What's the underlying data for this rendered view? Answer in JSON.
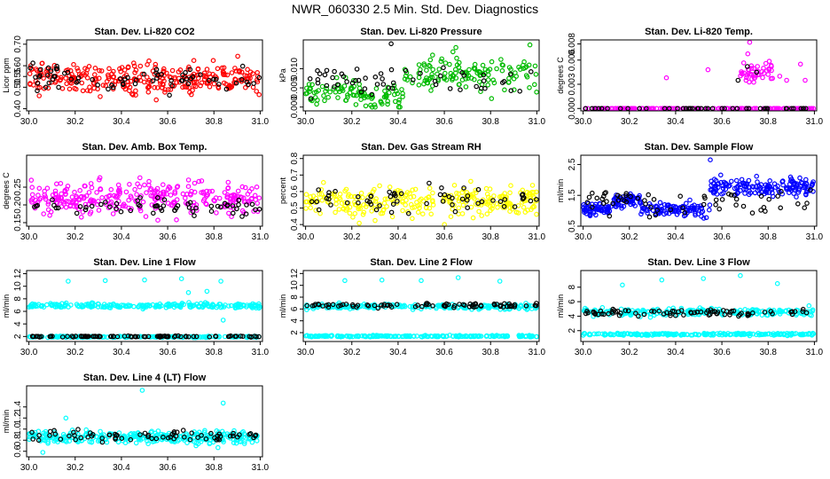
{
  "figure": {
    "title": "NWR_060330  2.5 Min. Std. Dev. Diagnostics",
    "background": "#ffffff",
    "overlay_color": "#000000"
  },
  "chart_data": [
    {
      "type": "scatter",
      "title": "Stan. Dev. Li-820 CO2",
      "xlabel": "",
      "ylabel": "Licor ppm",
      "color": "#ff0000",
      "xlim": [
        29.99,
        31.01
      ],
      "ylim": [
        0.39,
        0.72
      ],
      "xticks": [
        "30.0",
        "30.2",
        "30.4",
        "30.6",
        "30.8",
        "31.0"
      ],
      "yticks": [
        "0.40",
        "0.50",
        "0.55",
        "0.60",
        "0.70"
      ],
      "bands": [
        {
          "name": "main",
          "x_range": [
            30.0,
            31.0
          ],
          "mean": 0.54,
          "spread": 0.05,
          "min": 0.4,
          "max": 0.71,
          "count": 300,
          "colored": true
        },
        {
          "name": "overlay",
          "x_range": [
            30.0,
            31.0
          ],
          "mean": 0.535,
          "spread": 0.045,
          "min": 0.41,
          "max": 0.66,
          "count": 70,
          "colored": false
        }
      ],
      "outliers": []
    },
    {
      "type": "scatter",
      "title": "Stan. Dev. Li-820 Pressure",
      "xlabel": "",
      "ylabel": "kPa",
      "color": "#00bb00",
      "xlim": [
        29.99,
        31.01
      ],
      "ylim": [
        -0.001,
        0.0175
      ],
      "xticks": [
        "30.0",
        "30.2",
        "30.4",
        "30.6",
        "30.8",
        "31.0"
      ],
      "yticks": [
        "0.000",
        "0.005",
        "0.010"
      ],
      "bands": [
        {
          "name": "early",
          "x_range": [
            30.0,
            30.25
          ],
          "mean": 0.004,
          "spread": 0.0022,
          "min": 0.0,
          "max": 0.011,
          "count": 60,
          "colored": true
        },
        {
          "name": "dip",
          "x_range": [
            30.25,
            30.42
          ],
          "mean": 0.002,
          "spread": 0.0022,
          "min": 0.0,
          "max": 0.008,
          "count": 40,
          "colored": true
        },
        {
          "name": "rising",
          "x_range": [
            30.42,
            31.0
          ],
          "mean": 0.0085,
          "spread": 0.003,
          "min": 0.002,
          "max": 0.0165,
          "count": 130,
          "colored": true
        },
        {
          "name": "overlay",
          "x_range": [
            30.0,
            31.0
          ],
          "mean": 0.0065,
          "spread": 0.003,
          "min": 0.001,
          "max": 0.014,
          "count": 55,
          "colored": false
        }
      ],
      "outliers": [
        {
          "x": 30.37,
          "y": 0.0165,
          "colored": false
        },
        {
          "x": 30.97,
          "y": 0.0162,
          "colored": true
        },
        {
          "x": 30.65,
          "y": 0.0155,
          "colored": true
        }
      ]
    },
    {
      "type": "scatter",
      "title": "Stan. Dev. Li-820 Temp.",
      "xlabel": "",
      "ylabel": "degrees C",
      "color": "#ff00ff",
      "xlim": [
        29.99,
        31.01
      ],
      "ylim": [
        -0.0003,
        0.0085
      ],
      "xticks": [
        "30.0",
        "30.2",
        "30.4",
        "30.6",
        "30.8",
        "31.0"
      ],
      "yticks": [
        "0.000",
        "0.003",
        "0.006",
        "0.008"
      ],
      "bands": [
        {
          "name": "baseline",
          "x_range": [
            30.0,
            31.0
          ],
          "mean": 0.0,
          "spread": 0.0,
          "min": 0.0,
          "max": 0.0,
          "count": 130,
          "colored": true
        },
        {
          "name": "baseline-overlay",
          "x_range": [
            30.0,
            31.0
          ],
          "mean": 0.0,
          "spread": 0.0,
          "min": 0.0,
          "max": 0.0,
          "count": 45,
          "colored": false
        },
        {
          "name": "high",
          "x_range": [
            30.68,
            30.82
          ],
          "mean": 0.0045,
          "spread": 0.0012,
          "min": 0.0032,
          "max": 0.0075,
          "count": 45,
          "colored": true
        }
      ],
      "outliers": [
        {
          "x": 30.36,
          "y": 0.0038,
          "colored": true
        },
        {
          "x": 30.54,
          "y": 0.0048,
          "colored": true
        },
        {
          "x": 30.72,
          "y": 0.0082,
          "colored": true
        },
        {
          "x": 30.85,
          "y": 0.004,
          "colored": true
        },
        {
          "x": 30.88,
          "y": 0.0035,
          "colored": true
        },
        {
          "x": 30.94,
          "y": 0.0055,
          "colored": true
        },
        {
          "x": 30.96,
          "y": 0.0035,
          "colored": true
        },
        {
          "x": 30.67,
          "y": 0.0035,
          "colored": false
        },
        {
          "x": 30.71,
          "y": 0.0052,
          "colored": false
        },
        {
          "x": 30.75,
          "y": 0.0045,
          "colored": false
        }
      ]
    },
    {
      "type": "scatter",
      "title": "Stan. Dev. Amb. Box Temp.",
      "xlabel": "",
      "ylabel": "degrees C",
      "color": "#ff00ff",
      "xlim": [
        29.99,
        31.01
      ],
      "ylim": [
        0.14,
        0.34
      ],
      "xticks": [
        "30.0",
        "30.2",
        "30.4",
        "30.6",
        "30.8",
        "31.0"
      ],
      "yticks": [
        "0.15",
        "0.20",
        "0.25"
      ],
      "bands": [
        {
          "name": "main",
          "x_range": [
            30.0,
            31.0
          ],
          "mean": 0.22,
          "spread": 0.03,
          "min": 0.155,
          "max": 0.33,
          "count": 300,
          "colored": true
        },
        {
          "name": "overlay",
          "x_range": [
            30.0,
            31.0
          ],
          "mean": 0.195,
          "spread": 0.015,
          "min": 0.155,
          "max": 0.23,
          "count": 60,
          "colored": false
        }
      ],
      "outliers": []
    },
    {
      "type": "scatter",
      "title": "Stan. Dev. Gas Stream RH",
      "xlabel": "",
      "ylabel": "percent",
      "color": "#ffff00",
      "xlim": [
        29.99,
        31.01
      ],
      "ylim": [
        0.39,
        0.82
      ],
      "xticks": [
        "30.0",
        "30.2",
        "30.4",
        "30.6",
        "30.8",
        "31.0"
      ],
      "yticks": [
        "0.4",
        "0.5",
        "0.6",
        "0.7",
        "0.8"
      ],
      "bands": [
        {
          "name": "main",
          "x_range": [
            30.0,
            31.0
          ],
          "mean": 0.54,
          "spread": 0.06,
          "min": 0.4,
          "max": 0.8,
          "count": 280,
          "colored": true
        },
        {
          "name": "overlay",
          "x_range": [
            30.0,
            31.0
          ],
          "mean": 0.55,
          "spread": 0.05,
          "min": 0.44,
          "max": 0.7,
          "count": 60,
          "colored": false
        }
      ],
      "outliers": []
    },
    {
      "type": "scatter",
      "title": "Stan. Dev. Sample Flow",
      "xlabel": "",
      "ylabel": "ml/min",
      "color": "#0000ff",
      "xlim": [
        29.99,
        31.01
      ],
      "ylim": [
        0.5,
        2.8
      ],
      "xticks": [
        "30.0",
        "30.2",
        "30.4",
        "30.6",
        "30.8",
        "31.0"
      ],
      "yticks": [
        "0.5",
        "1.5",
        "2.5"
      ],
      "bands": [
        {
          "name": "seg-a",
          "x_range": [
            30.0,
            30.12
          ],
          "mean": 1.05,
          "spread": 0.12,
          "min": 0.8,
          "max": 1.4,
          "count": 55,
          "colored": true
        },
        {
          "name": "seg-b",
          "x_range": [
            30.12,
            30.25
          ],
          "mean": 1.35,
          "spread": 0.15,
          "min": 0.9,
          "max": 1.8,
          "count": 55,
          "colored": true
        },
        {
          "name": "seg-c",
          "x_range": [
            30.25,
            30.55
          ],
          "mean": 1.05,
          "spread": 0.15,
          "min": 0.6,
          "max": 1.5,
          "count": 100,
          "colored": true
        },
        {
          "name": "seg-d",
          "x_range": [
            30.55,
            31.0
          ],
          "mean": 1.75,
          "spread": 0.2,
          "min": 1.1,
          "max": 2.5,
          "count": 150,
          "colored": true
        },
        {
          "name": "overlay",
          "x_range": [
            30.0,
            31.0
          ],
          "mean": 1.3,
          "spread": 0.3,
          "min": 0.8,
          "max": 2.2,
          "count": 60,
          "colored": false
        }
      ],
      "outliers": [
        {
          "x": 30.55,
          "y": 2.65,
          "colored": true
        }
      ]
    },
    {
      "type": "scatter",
      "title": "Stan. Dev. Line 1 Flow",
      "xlabel": "",
      "ylabel": "ml/min",
      "color": "#00ffff",
      "xlim": [
        29.99,
        31.01
      ],
      "ylim": [
        1.2,
        12.5
      ],
      "xticks": [
        "30.0",
        "30.2",
        "30.4",
        "30.6",
        "30.8",
        "31.0"
      ],
      "yticks": [
        "2",
        "4",
        "6",
        "8",
        "10",
        "12"
      ],
      "bands": [
        {
          "name": "upper",
          "x_range": [
            30.0,
            31.0
          ],
          "mean": 6.9,
          "spread": 0.25,
          "min": 6.0,
          "max": 7.8,
          "count": 240,
          "colored": true
        },
        {
          "name": "lower",
          "x_range": [
            30.0,
            31.0
          ],
          "mean": 1.95,
          "spread": 0.07,
          "min": 1.7,
          "max": 2.2,
          "count": 200,
          "colored": true
        },
        {
          "name": "lower-overlay",
          "x_range": [
            30.0,
            31.0
          ],
          "mean": 2.0,
          "spread": 0.06,
          "min": 1.8,
          "max": 2.2,
          "count": 90,
          "colored": false
        }
      ],
      "outliers": [
        {
          "x": 30.17,
          "y": 10.8,
          "colored": true
        },
        {
          "x": 30.33,
          "y": 10.9,
          "colored": true
        },
        {
          "x": 30.5,
          "y": 11.0,
          "colored": true
        },
        {
          "x": 30.66,
          "y": 11.2,
          "colored": true
        },
        {
          "x": 30.69,
          "y": 9.0,
          "colored": true
        },
        {
          "x": 30.83,
          "y": 10.8,
          "colored": true
        },
        {
          "x": 30.84,
          "y": 4.6,
          "colored": true
        },
        {
          "x": 30.77,
          "y": 9.2,
          "colored": true
        }
      ]
    },
    {
      "type": "scatter",
      "title": "Stan. Dev. Line 2 Flow",
      "xlabel": "",
      "ylabel": "ml/min",
      "color": "#00ffff",
      "xlim": [
        29.99,
        31.01
      ],
      "ylim": [
        0.5,
        12.5
      ],
      "xticks": [
        "30.0",
        "30.2",
        "30.4",
        "30.6",
        "30.8",
        "31.0"
      ],
      "yticks": [
        "2",
        "4",
        "6",
        "8",
        "10",
        "12"
      ],
      "bands": [
        {
          "name": "upper",
          "x_range": [
            30.0,
            31.0
          ],
          "mean": 6.4,
          "spread": 0.3,
          "min": 5.5,
          "max": 7.3,
          "count": 220,
          "colored": true
        },
        {
          "name": "upper-overlay",
          "x_range": [
            30.0,
            31.0
          ],
          "mean": 6.6,
          "spread": 0.25,
          "min": 6.0,
          "max": 7.3,
          "count": 80,
          "colored": false
        },
        {
          "name": "lower",
          "x_range": [
            30.0,
            31.0
          ],
          "mean": 1.4,
          "spread": 0.08,
          "min": 1.1,
          "max": 1.7,
          "count": 220,
          "colored": true
        }
      ],
      "outliers": [
        {
          "x": 30.17,
          "y": 10.8,
          "colored": true
        },
        {
          "x": 30.33,
          "y": 10.9,
          "colored": true
        },
        {
          "x": 30.5,
          "y": 10.8,
          "colored": true
        },
        {
          "x": 30.66,
          "y": 11.3,
          "colored": true
        },
        {
          "x": 30.84,
          "y": 10.7,
          "colored": true
        }
      ]
    },
    {
      "type": "scatter",
      "title": "Stan. Dev. Line 3 Flow",
      "xlabel": "",
      "ylabel": "ml/min",
      "color": "#00ffff",
      "xlim": [
        29.99,
        31.01
      ],
      "ylim": [
        0.5,
        10.3
      ],
      "xticks": [
        "30.0",
        "30.2",
        "30.4",
        "30.6",
        "30.8",
        "31.0"
      ],
      "yticks": [
        "2",
        "4",
        "6",
        "8"
      ],
      "bands": [
        {
          "name": "upper",
          "x_range": [
            30.0,
            31.0
          ],
          "mean": 4.6,
          "spread": 0.35,
          "min": 3.6,
          "max": 6.0,
          "count": 230,
          "colored": true
        },
        {
          "name": "upper-overlay",
          "x_range": [
            30.0,
            31.0
          ],
          "mean": 4.5,
          "spread": 0.3,
          "min": 3.8,
          "max": 5.4,
          "count": 80,
          "colored": false
        },
        {
          "name": "lower",
          "x_range": [
            30.0,
            31.0
          ],
          "mean": 1.5,
          "spread": 0.1,
          "min": 1.2,
          "max": 1.9,
          "count": 220,
          "colored": true
        }
      ],
      "outliers": [
        {
          "x": 30.17,
          "y": 8.3,
          "colored": true
        },
        {
          "x": 30.34,
          "y": 9.0,
          "colored": true
        },
        {
          "x": 30.52,
          "y": 9.2,
          "colored": true
        },
        {
          "x": 30.68,
          "y": 9.6,
          "colored": true
        },
        {
          "x": 30.84,
          "y": 8.5,
          "colored": true
        }
      ]
    },
    {
      "type": "scatter",
      "title": "Stan. Dev. Line 4 (LT) Flow",
      "xlabel": "",
      "ylabel": "ml/min",
      "color": "#00ffff",
      "xlim": [
        29.99,
        31.01
      ],
      "ylim": [
        0.5,
        1.78
      ],
      "xticks": [
        "30.0",
        "30.2",
        "30.4",
        "30.6",
        "30.8",
        "31.0"
      ],
      "yticks": [
        "0.6",
        "0.8",
        "1.0",
        "1.2",
        "1.4"
      ],
      "bands": [
        {
          "name": "main",
          "x_range": [
            30.0,
            31.0
          ],
          "mean": 0.85,
          "spread": 0.08,
          "min": 0.58,
          "max": 1.05,
          "count": 320,
          "colored": true
        },
        {
          "name": "overlay",
          "x_range": [
            30.0,
            31.0
          ],
          "mean": 0.88,
          "spread": 0.07,
          "min": 0.7,
          "max": 1.02,
          "count": 70,
          "colored": false
        }
      ],
      "outliers": [
        {
          "x": 30.16,
          "y": 1.2,
          "colored": true
        },
        {
          "x": 30.49,
          "y": 1.7,
          "colored": true
        },
        {
          "x": 30.84,
          "y": 1.47,
          "colored": true
        },
        {
          "x": 30.06,
          "y": 0.58,
          "colored": true
        }
      ]
    }
  ]
}
